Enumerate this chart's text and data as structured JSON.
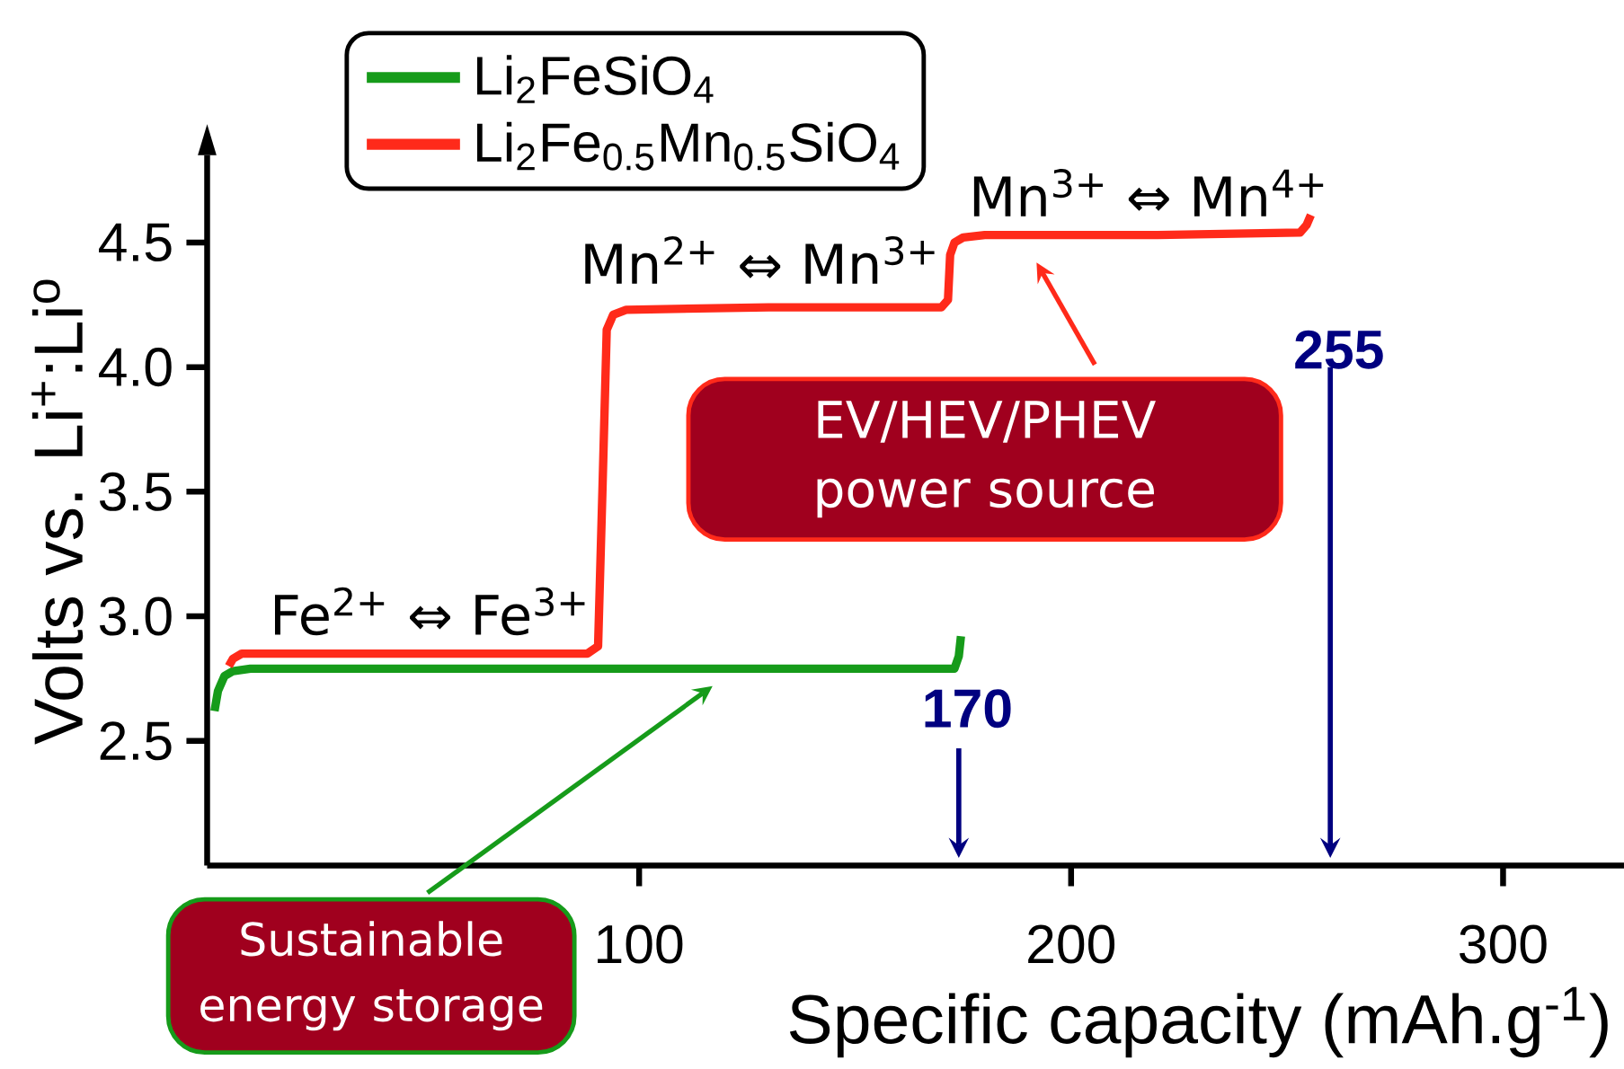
{
  "chart_data": {
    "type": "line",
    "xlabel": "Specific capacity (mAh.g$^{-1}$)",
    "ylabel": "Volts vs. Li$^{+}$:Li$^{o}$",
    "xlim": [
      0,
      328
    ],
    "ylim": [
      2.0,
      4.85
    ],
    "xticks": [
      100,
      200,
      300
    ],
    "yticks": [
      2.5,
      {
        "value": 3.0,
        "label": "3.0"
      },
      3.5,
      {
        "value": 4.0,
        "label": "4.0"
      },
      4.5
    ],
    "legend": "top left",
    "series": [
      {
        "name": "Li$_{2}$FeSiO$_{4}$",
        "color": "#169b1a",
        "x": [
          1.7,
          2.5,
          4,
          6,
          10,
          60,
          120,
          173,
          174,
          174.5
        ],
        "values": [
          2.62,
          2.7,
          2.76,
          2.78,
          2.79,
          2.79,
          2.79,
          2.79,
          2.84,
          2.92
        ]
      },
      {
        "name": "Li$_{2}$Fe$_{0.5}$Mn$_{0.5}$SiO$_{4}$",
        "color": "#ff2a1a",
        "x": [
          5,
          6,
          8,
          40,
          88,
          90.5,
          91.5,
          92.5,
          94,
          97,
          130,
          170,
          171.5,
          172,
          173,
          175,
          180,
          220,
          253,
          254.5,
          255.5
        ],
        "values": [
          2.8,
          2.83,
          2.85,
          2.85,
          2.85,
          2.88,
          3.5,
          4.15,
          4.21,
          4.23,
          4.24,
          4.24,
          4.27,
          4.45,
          4.5,
          4.52,
          4.53,
          4.53,
          4.54,
          4.57,
          4.61
        ]
      }
    ],
    "annotations": [
      "Fe$^{2+}$ ⇔ Fe$^{3+}$",
      "Mn$^{2+}$ ⇔ Mn$^{3+}$",
      "Mn$^{3+}$ ⇔ Mn$^{4+}$",
      "170",
      "255",
      "EV/HEV/PHEV power source",
      "Sustainable energy storage"
    ]
  }
}
